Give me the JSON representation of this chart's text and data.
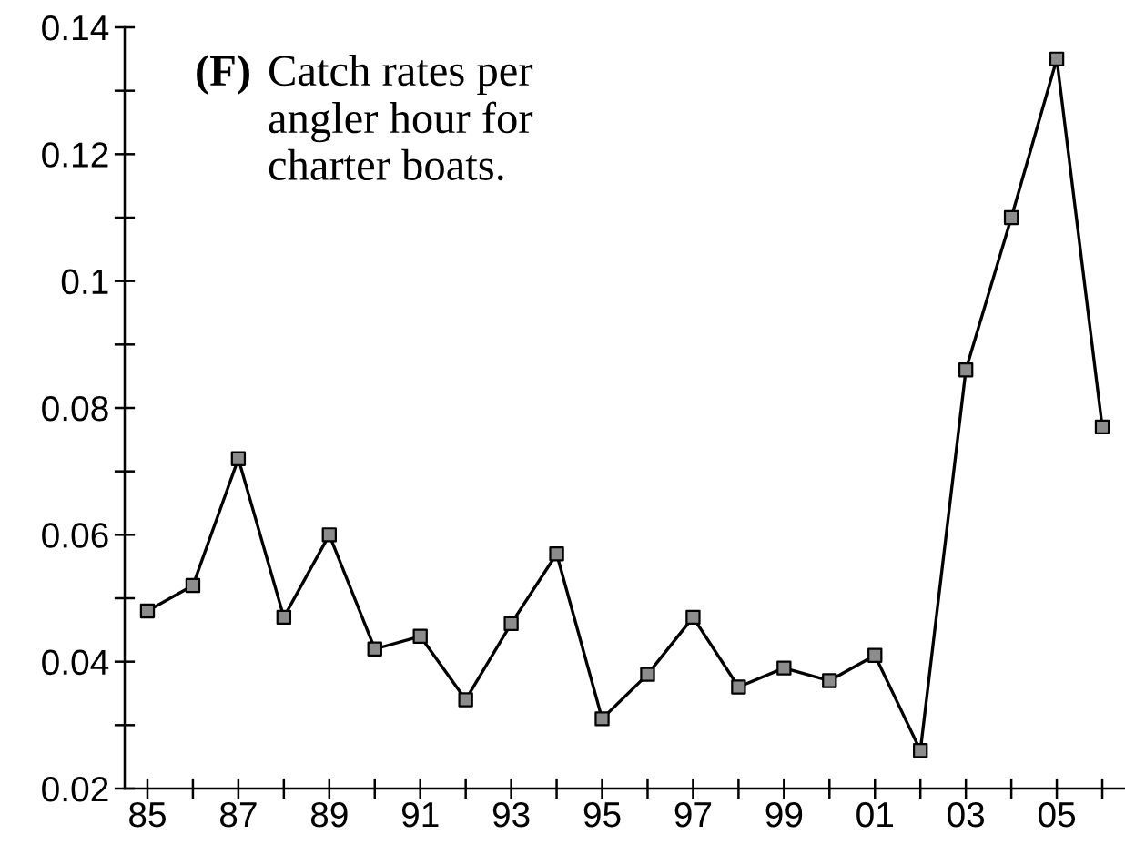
{
  "chart_data": {
    "type": "line",
    "title": "(F)",
    "subtitle": "Catch rates per\nangler hour for\ncharter boats.",
    "x": [
      1985,
      1986,
      1987,
      1988,
      1989,
      1990,
      1991,
      1992,
      1993,
      1994,
      1995,
      1996,
      1997,
      1998,
      1999,
      2000,
      2001,
      2002,
      2003,
      2004,
      2005,
      2006
    ],
    "series": [
      {
        "color": "#000000",
        "colors": [
          "#8c8c8c",
          "#8c8c8c",
          "#8c8c8c",
          "#8c8c8c",
          "#8c8c8c",
          "#8c8c8c",
          "#8c8c8c",
          "#8c8c8c",
          "#8c8c8c",
          "#8c8c8c",
          "#8c8c8c",
          "#8c8c8c",
          "#8c8c8c",
          "#8c8c8c",
          "#8c8c8c",
          "#8c8c8c",
          "#8c8c8c",
          "#8c8c8c",
          "#8c8c8c",
          "#8c8c8c",
          "#8c8c8c",
          "#8c8c8c"
        ],
        "values": [
          0.048,
          0.052,
          0.072,
          0.047,
          0.06,
          0.042,
          0.044,
          0.034,
          0.046,
          0.057,
          0.031,
          0.038,
          0.047,
          0.036,
          0.039,
          0.037,
          0.041,
          0.026,
          0.086,
          0.11,
          0.135,
          0.077
        ]
      }
    ],
    "xlim": [
      1984.5,
      2006.5
    ],
    "xticks": [
      {
        "value": 1985,
        "label": "85"
      },
      {
        "value": 1986,
        "label": null
      },
      {
        "value": 1987,
        "label": "87"
      },
      {
        "value": 1988,
        "label": null
      },
      {
        "value": 1989,
        "label": "89"
      },
      {
        "value": 1990,
        "label": null
      },
      {
        "value": 1991,
        "label": "91"
      },
      {
        "value": 1992,
        "label": null
      },
      {
        "value": 1993,
        "label": "93"
      },
      {
        "value": 1994,
        "label": null
      },
      {
        "value": 1995,
        "label": "95"
      },
      {
        "value": 1996,
        "label": null
      },
      {
        "value": 1997,
        "label": "97"
      },
      {
        "value": 1998,
        "label": null
      },
      {
        "value": 1999,
        "label": "99"
      },
      {
        "value": 2000,
        "label": null
      },
      {
        "value": 2001,
        "label": "01"
      },
      {
        "value": 2002,
        "label": null
      },
      {
        "value": 2003,
        "label": "03"
      },
      {
        "value": 2004,
        "label": null
      },
      {
        "value": 2005,
        "label": "05"
      },
      {
        "value": 2006,
        "label": null
      }
    ],
    "ylim": [
      0.02,
      0.14
    ],
    "yticks": [
      0.02,
      {
        "value": 0.03,
        "label": null
      },
      0.04,
      {
        "value": 0.05,
        "label": null
      },
      0.06,
      {
        "value": 0.07,
        "label": null
      },
      0.08,
      {
        "value": 0.09,
        "label": null
      },
      0.1,
      {
        "value": 0.11,
        "label": null
      },
      0.12,
      {
        "value": 0.13,
        "label": null
      },
      0.14
    ],
    "grid": false,
    "marker": "square",
    "line_style": "solid"
  }
}
